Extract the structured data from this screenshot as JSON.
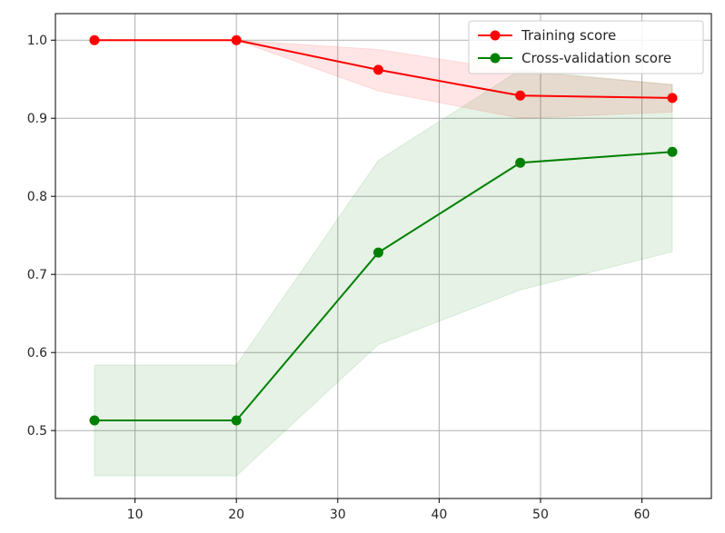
{
  "chart_data": {
    "type": "line",
    "title": "",
    "xlabel": "",
    "ylabel": "",
    "xlim": [
      2.15,
      66.85
    ],
    "ylim": [
      0.413,
      1.034
    ],
    "xticks": [
      10,
      20,
      30,
      40,
      50,
      60
    ],
    "yticks": [
      0.5,
      0.6,
      0.7,
      0.8,
      0.9,
      1.0
    ],
    "xtick_labels": [
      "10",
      "20",
      "30",
      "40",
      "50",
      "60"
    ],
    "ytick_labels": [
      "0.5",
      "0.6",
      "0.7",
      "0.8",
      "0.9",
      "1.0"
    ],
    "grid": true,
    "legend_position": "top-right",
    "x": [
      6,
      20,
      34,
      48,
      63
    ],
    "series": [
      {
        "name": "Training score",
        "color": "#ff0000",
        "values": [
          1.0,
          1.0,
          0.962,
          0.929,
          0.926
        ],
        "band_lower": [
          1.0,
          1.0,
          0.935,
          0.9,
          0.908
        ],
        "band_upper": [
          1.0,
          1.0,
          0.988,
          0.96,
          0.943
        ]
      },
      {
        "name": "Cross-validation score",
        "color": "#008000",
        "values": [
          0.513,
          0.513,
          0.728,
          0.843,
          0.857
        ],
        "band_lower": [
          0.442,
          0.442,
          0.61,
          0.68,
          0.729
        ],
        "band_upper": [
          0.584,
          0.584,
          0.846,
          0.962,
          0.943
        ]
      }
    ]
  }
}
